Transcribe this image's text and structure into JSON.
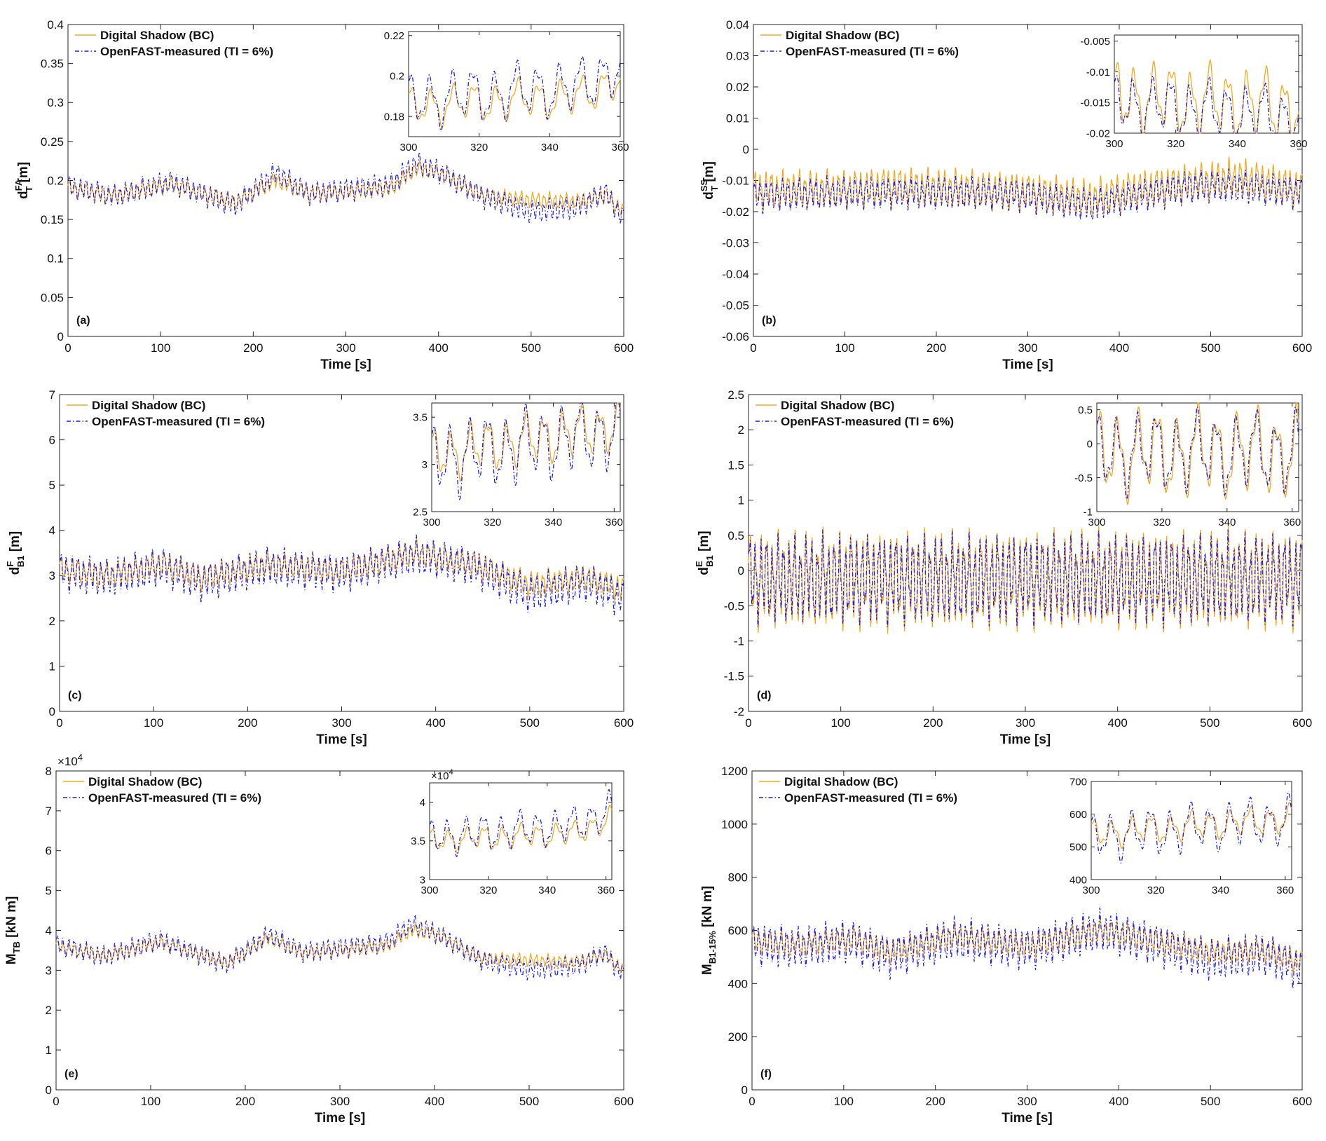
{
  "chart_data": [
    {
      "id": "a",
      "type": "line",
      "panel_label": "(a)",
      "xlabel": "Time [s]",
      "ylabel": {
        "base": "d",
        "sup": "FA",
        "sub": "T",
        "unit": "[m]"
      },
      "xlim": [
        0,
        600
      ],
      "ylim": [
        0,
        0.4
      ],
      "xticks": [
        0,
        100,
        200,
        300,
        400,
        500,
        600
      ],
      "yticks": [
        0,
        0.05,
        0.1,
        0.15,
        0.2,
        0.25,
        0.3,
        0.35,
        0.4
      ],
      "ytick_labels": [
        "0",
        "0.05",
        "0.1",
        "0.15",
        "0.2",
        "0.25",
        "0.3",
        "0.35",
        "0.4"
      ],
      "exponent": "",
      "series": [
        {
          "name": "Digital Shadow (BC)",
          "style": "solid",
          "color": "#f2a91e",
          "amp": 0.01,
          "t": [
            0,
            50,
            110,
            180,
            225,
            260,
            300,
            350,
            375,
            400,
            450,
            500,
            550,
            580,
            600
          ],
          "y": [
            0.19,
            0.18,
            0.195,
            0.172,
            0.2,
            0.183,
            0.185,
            0.19,
            0.215,
            0.21,
            0.18,
            0.175,
            0.173,
            0.18,
            0.16
          ]
        },
        {
          "name": "OpenFAST-measured (TI = 6%)",
          "style": "dashdot",
          "color": "#1a1aeb",
          "amp": 0.014,
          "t": [
            0,
            50,
            110,
            180,
            225,
            260,
            300,
            350,
            375,
            400,
            450,
            500,
            550,
            580,
            600
          ],
          "y": [
            0.193,
            0.18,
            0.198,
            0.168,
            0.21,
            0.183,
            0.188,
            0.195,
            0.222,
            0.212,
            0.178,
            0.16,
            0.165,
            0.185,
            0.15
          ]
        }
      ],
      "inset": {
        "xlim": [
          300,
          360
        ],
        "ylim": [
          0.17,
          0.222
        ],
        "xticks": [
          300,
          320,
          340,
          360
        ],
        "yticks": [
          0.18,
          0.2,
          0.22
        ],
        "ytick_labels": [
          "0.18",
          "0.2",
          "0.22"
        ],
        "exponent": ""
      }
    },
    {
      "id": "b",
      "type": "line",
      "panel_label": "(b)",
      "xlabel": "Time [s]",
      "ylabel": {
        "base": "d",
        "sup": "SS",
        "sub": "T",
        "unit": "[m]"
      },
      "xlim": [
        0,
        600
      ],
      "ylim": [
        -0.06,
        0.04
      ],
      "xticks": [
        0,
        100,
        200,
        300,
        400,
        500,
        600
      ],
      "yticks": [
        -0.06,
        -0.05,
        -0.04,
        -0.03,
        -0.02,
        -0.01,
        0,
        0.01,
        0.02,
        0.03,
        0.04
      ],
      "ytick_labels": [
        "-0.06",
        "-0.05",
        "-0.04",
        "-0.03",
        "-0.02",
        "-0.01",
        "0",
        "0.01",
        "0.02",
        "0.03",
        "0.04"
      ],
      "exponent": "",
      "series": [
        {
          "name": "Digital Shadow (BC)",
          "style": "solid",
          "color": "#f2a91e",
          "amp": 0.006,
          "t": [
            0,
            100,
            150,
            250,
            300,
            370,
            420,
            480,
            530,
            600
          ],
          "y": [
            -0.013,
            -0.013,
            -0.012,
            -0.013,
            -0.014,
            -0.016,
            -0.013,
            -0.011,
            -0.009,
            -0.013
          ]
        },
        {
          "name": "OpenFAST-measured (TI = 6%)",
          "style": "dashdot",
          "color": "#1a1aeb",
          "amp": 0.005,
          "t": [
            0,
            100,
            150,
            250,
            300,
            370,
            420,
            480,
            530,
            600
          ],
          "y": [
            -0.015,
            -0.014,
            -0.014,
            -0.014,
            -0.015,
            -0.018,
            -0.015,
            -0.012,
            -0.012,
            -0.014
          ]
        }
      ],
      "inset": {
        "xlim": [
          300,
          360
        ],
        "ylim": [
          -0.02,
          -0.004
        ],
        "xticks": [
          300,
          320,
          340,
          360
        ],
        "yticks": [
          -0.02,
          -0.015,
          -0.01,
          -0.005
        ],
        "ytick_labels": [
          "-0.02",
          "-0.015",
          "-0.01",
          "-0.005"
        ],
        "exponent": ""
      }
    },
    {
      "id": "c",
      "type": "line",
      "panel_label": "(c)",
      "xlabel": "Time [s]",
      "ylabel": {
        "base": "d",
        "sup": "F",
        "sub": "B1",
        "unit": "[m]"
      },
      "xlim": [
        0,
        600
      ],
      "ylim": [
        0,
        7
      ],
      "xticks": [
        0,
        100,
        200,
        300,
        400,
        500,
        600
      ],
      "yticks": [
        0,
        1,
        2,
        3,
        4,
        5,
        6,
        7
      ],
      "ytick_labels": [
        "0",
        "1",
        "2",
        "3",
        "4",
        "5",
        "6",
        "7"
      ],
      "exponent": "",
      "series": [
        {
          "name": "Digital Shadow (BC)",
          "style": "solid",
          "color": "#f2a91e",
          "amp": 0.28,
          "t": [
            0,
            50,
            110,
            150,
            220,
            300,
            380,
            440,
            500,
            560,
            600
          ],
          "y": [
            3.15,
            3.0,
            3.25,
            2.95,
            3.25,
            3.1,
            3.5,
            3.25,
            2.8,
            2.95,
            2.7
          ]
        },
        {
          "name": "OpenFAST-measured (TI = 6%)",
          "style": "dashdot",
          "color": "#1a1aeb",
          "amp": 0.4,
          "t": [
            0,
            50,
            110,
            150,
            220,
            300,
            380,
            440,
            500,
            560,
            600
          ],
          "y": [
            3.1,
            2.95,
            3.2,
            2.85,
            3.2,
            3.05,
            3.45,
            3.2,
            2.6,
            2.85,
            2.5
          ]
        }
      ],
      "inset": {
        "xlim": [
          300,
          362
        ],
        "ylim": [
          2.5,
          3.65
        ],
        "xticks": [
          300,
          320,
          340,
          360
        ],
        "yticks": [
          2.5,
          3,
          3.5
        ],
        "ytick_labels": [
          "2.5",
          "3",
          "3.5"
        ],
        "exponent": ""
      }
    },
    {
      "id": "d",
      "type": "line",
      "panel_label": "(d)",
      "xlabel": "Time [s]",
      "ylabel": {
        "base": "d",
        "sup": "E",
        "sub": "B1",
        "unit": "[m]"
      },
      "xlim": [
        0,
        600
      ],
      "ylim": [
        -2,
        2.5
      ],
      "xticks": [
        0,
        100,
        200,
        300,
        400,
        500,
        600
      ],
      "yticks": [
        -2,
        -1.5,
        -1,
        -0.5,
        0,
        0.5,
        1,
        1.5,
        2,
        2.5
      ],
      "ytick_labels": [
        "-2",
        "-1.5",
        "-1",
        "-0.5",
        "0",
        "0.5",
        "1",
        "1.5",
        "2",
        "2.5"
      ],
      "exponent": "",
      "series": [
        {
          "name": "Digital Shadow (BC)",
          "style": "solid",
          "color": "#f2a91e",
          "amp": 0.66,
          "t": [
            0,
            600
          ],
          "y": [
            -0.13,
            -0.13
          ]
        },
        {
          "name": "OpenFAST-measured (TI = 6%)",
          "style": "dashdot",
          "color": "#1a1aeb",
          "amp": 0.6,
          "t": [
            0,
            600
          ],
          "y": [
            -0.12,
            -0.12
          ]
        }
      ],
      "inset": {
        "xlim": [
          300,
          362
        ],
        "ylim": [
          -1,
          0.6
        ],
        "xticks": [
          300,
          320,
          340,
          360
        ],
        "yticks": [
          -1,
          -0.5,
          0,
          0.5
        ],
        "ytick_labels": [
          "-1",
          "-0.5",
          "0",
          "0.5"
        ],
        "exponent": ""
      }
    },
    {
      "id": "e",
      "type": "line",
      "panel_label": "(e)",
      "xlabel": "Time [s]",
      "ylabel": {
        "base": "M",
        "sup": "",
        "sub": "TB",
        "unit": "[kN m]"
      },
      "xlim": [
        0,
        600
      ],
      "ylim": [
        0,
        80000
      ],
      "xticks": [
        0,
        100,
        200,
        300,
        400,
        500,
        600
      ],
      "yticks": [
        0,
        10000,
        20000,
        30000,
        40000,
        50000,
        60000,
        70000,
        80000
      ],
      "ytick_labels": [
        "0",
        "1",
        "2",
        "3",
        "4",
        "5",
        "6",
        "7",
        "8"
      ],
      "exponent": "×10^4",
      "series": [
        {
          "name": "Digital Shadow (BC)",
          "style": "solid",
          "color": "#f2a91e",
          "amp": 1600,
          "t": [
            0,
            50,
            110,
            180,
            225,
            260,
            300,
            350,
            375,
            400,
            450,
            500,
            550,
            580,
            600
          ],
          "y": [
            36000,
            33500,
            37000,
            32000,
            38000,
            34500,
            35000,
            36000,
            40000,
            39000,
            33000,
            32500,
            32000,
            34000,
            30000
          ]
        },
        {
          "name": "OpenFAST-measured (TI = 6%)",
          "style": "dashdot",
          "color": "#1a1aeb",
          "amp": 2400,
          "t": [
            0,
            50,
            110,
            180,
            225,
            260,
            300,
            350,
            375,
            400,
            450,
            500,
            550,
            580,
            600
          ],
          "y": [
            36500,
            33500,
            37500,
            31500,
            39000,
            34500,
            35500,
            37000,
            41500,
            39500,
            32500,
            30000,
            31000,
            34500,
            28500
          ]
        }
      ],
      "inset": {
        "xlim": [
          300,
          362
        ],
        "ylim": [
          30000,
          42500
        ],
        "xticks": [
          300,
          320,
          340,
          360
        ],
        "yticks": [
          30000,
          35000,
          40000
        ],
        "ytick_labels": [
          "3",
          "3.5",
          "4"
        ],
        "exponent": "×10^4"
      }
    },
    {
      "id": "f",
      "type": "line",
      "panel_label": "(f)",
      "xlabel": "Time [s]",
      "ylabel": {
        "base": "M",
        "sup": "",
        "sub": "B1-15%",
        "unit": "[kN m]"
      },
      "xlim": [
        0,
        600
      ],
      "ylim": [
        0,
        1200
      ],
      "xticks": [
        0,
        100,
        200,
        300,
        400,
        500,
        600
      ],
      "yticks": [
        0,
        200,
        400,
        600,
        800,
        1000,
        1200
      ],
      "ytick_labels": [
        "0",
        "200",
        "400",
        "600",
        "800",
        "1000",
        "1200"
      ],
      "exponent": "",
      "series": [
        {
          "name": "Digital Shadow (BC)",
          "style": "solid",
          "color": "#f2a91e",
          "amp": 45,
          "t": [
            0,
            50,
            110,
            150,
            220,
            300,
            380,
            440,
            500,
            560,
            600
          ],
          "y": [
            560,
            545,
            570,
            520,
            580,
            540,
            600,
            560,
            520,
            525,
            480
          ]
        },
        {
          "name": "OpenFAST-measured (TI = 6%)",
          "style": "dashdot",
          "color": "#1a1aeb",
          "amp": 75,
          "t": [
            0,
            50,
            110,
            150,
            220,
            300,
            380,
            440,
            500,
            560,
            600
          ],
          "y": [
            550,
            535,
            560,
            500,
            570,
            530,
            600,
            550,
            490,
            510,
            450
          ]
        }
      ],
      "inset": {
        "xlim": [
          300,
          362
        ],
        "ylim": [
          400,
          700
        ],
        "xticks": [
          300,
          320,
          340,
          360
        ],
        "yticks": [
          400,
          500,
          600,
          700
        ],
        "ytick_labels": [
          "400",
          "500",
          "600",
          "700"
        ],
        "exponent": ""
      }
    }
  ]
}
